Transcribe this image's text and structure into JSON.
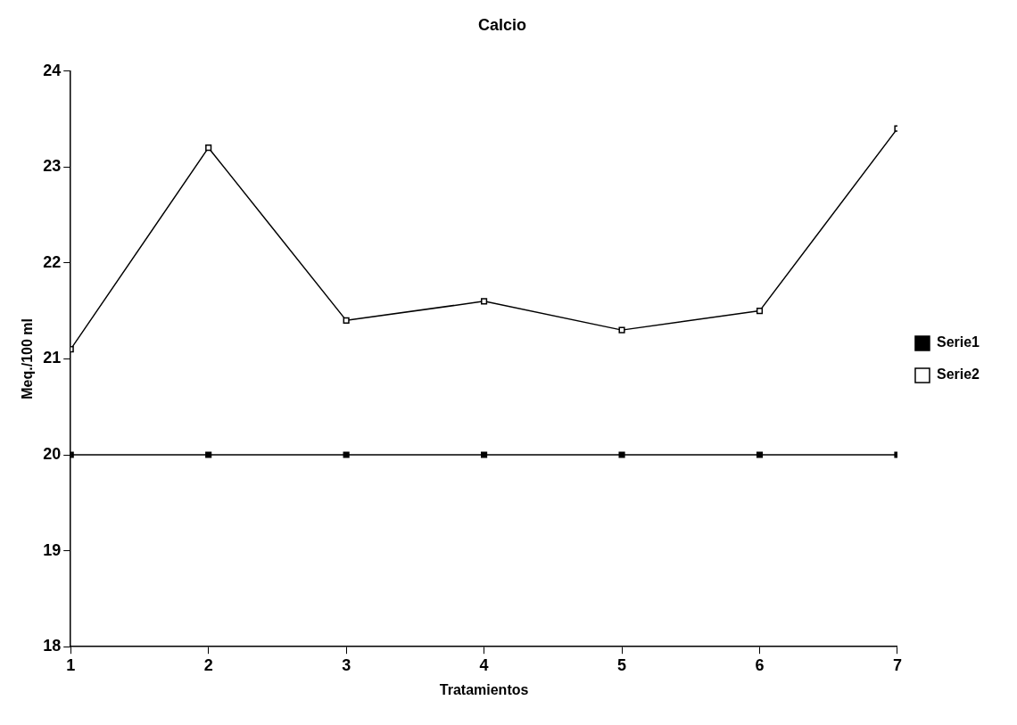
{
  "chart_data": {
    "type": "line",
    "title": "Calcio",
    "xlabel": "Tratamientos",
    "ylabel": "Meq./100 ml",
    "x": [
      1,
      2,
      3,
      4,
      5,
      6,
      7
    ],
    "xlim": [
      1,
      7
    ],
    "xticks": [
      1,
      2,
      3,
      4,
      5,
      6,
      7
    ],
    "ylim": [
      18,
      24
    ],
    "yticks": [
      18,
      19,
      20,
      21,
      22,
      23,
      24
    ],
    "series": [
      {
        "name": "Serie1",
        "color": "#000000",
        "values": [
          20,
          20,
          20,
          20,
          20,
          20,
          20
        ]
      },
      {
        "name": "Serie2",
        "color": "#000000",
        "values": [
          21.1,
          23.2,
          21.4,
          21.6,
          21.3,
          21.5,
          23.4
        ]
      }
    ],
    "marker": "square",
    "line_style": "solid",
    "grid": false,
    "legend": "right"
  }
}
